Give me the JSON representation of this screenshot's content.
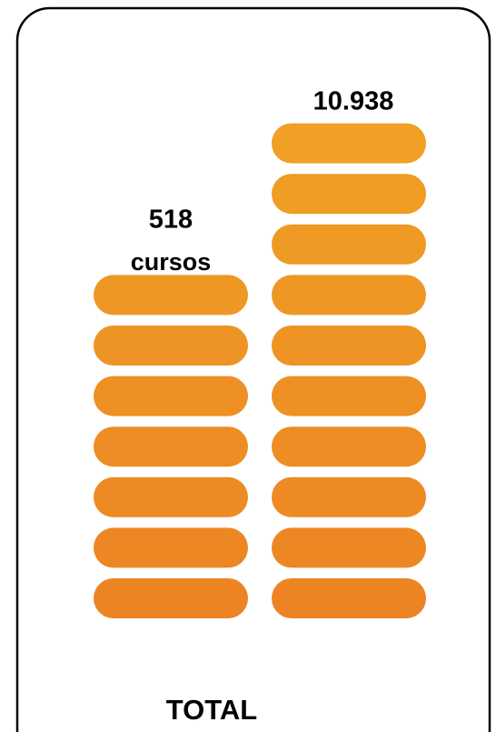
{
  "left": {
    "value": "518",
    "unit": "cursos"
  },
  "right": {
    "value": "10.938"
  },
  "footer": {
    "label": "TOTAL"
  }
}
